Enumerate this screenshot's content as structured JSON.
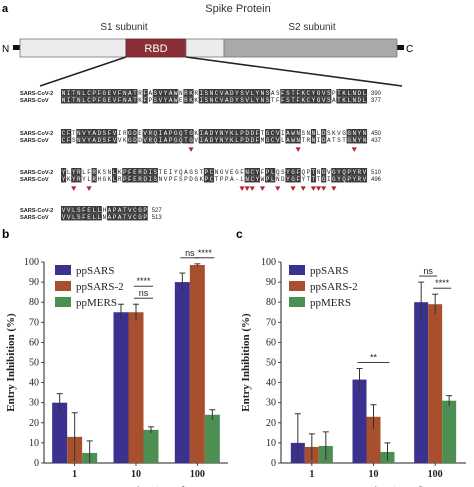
{
  "panel_a": {
    "letter": "a",
    "title": "Spike Protein",
    "s1_label": "S1 subunit",
    "s2_label": "S2 subunit",
    "n_label": "N",
    "c_label": "C",
    "rbd_label": "RBD",
    "blocks": [
      {
        "rows": [
          {
            "name": "SARS-CoV-2",
            "seq": "NITNLCPFGEVFNATRFASVYAWNRKRISNCVADYSVLYNSASFSTFKCYGVSPTKLNDL",
            "end": "390"
          },
          {
            "name": "SARS-CoV",
            "seq": "NITNLCPFGEVFNATKFPSVYAWERKKISNCVADYSVLYNSTFFSTFKCYGVSATKLNDL",
            "end": "377"
          }
        ],
        "markers": []
      },
      {
        "rows": [
          {
            "name": "SARS-CoV-2",
            "seq": "CFTNVYADSFVIRGDEVRQIAPGQTGKIADYNYKLPDDFTGCVIAWNSNNLDSKVGGNYN",
            "end": "450"
          },
          {
            "name": "SARS-CoV",
            "seq": "CFSNVYADSFVVKGDDVRQIAPGQTGVIADYNYKLPDDFMGCVLAWNTRNIDATSTGNYN",
            "end": "437"
          }
        ],
        "markers": [
          25,
          46,
          57
        ]
      },
      {
        "rows": [
          {
            "name": "SARS-CoV-2",
            "seq": "YLYRLFRKSNLKPFERDISTEIYQAGSTPCNGVEGFNCYFPLQSYGFQPTNGVGYQPYRV",
            "end": "510"
          },
          {
            "name": "SARS-CoV",
            "seq": "YKYRYLRHGKLRPFERDISNVPFSPDGKPCTPPA-LNCYWPLNDYGFYTTTGIGYQPYRV",
            "end": "496"
          }
        ],
        "markers": [
          2,
          5,
          35,
          36,
          37,
          39,
          42,
          45,
          47,
          49,
          50,
          51,
          53
        ]
      },
      {
        "rows": [
          {
            "name": "SARS-CoV-2",
            "seq": "VVLSFELLHAPATVCGP",
            "end": "527"
          },
          {
            "name": "SARS-CoV",
            "seq": "VVLSFELLNAPATVCGP",
            "end": "513"
          }
        ],
        "markers": []
      }
    ]
  },
  "chart_data": [
    {
      "type": "bar",
      "panel": "b",
      "categories": [
        "1",
        "10",
        "100"
      ],
      "xlabel": "Concentration (μg/ml)",
      "ylabel": "Entry Inhibition (%)",
      "ylim": [
        0,
        100
      ],
      "yticks": [
        0,
        10,
        20,
        30,
        40,
        50,
        60,
        70,
        80,
        90,
        100
      ],
      "series": [
        {
          "name": "ppSARS",
          "color": "#3b318f",
          "values": [
            30,
            75,
            90
          ],
          "err": [
            4.5,
            4,
            4.5
          ]
        },
        {
          "name": "ppSARS-2",
          "color": "#a8502e",
          "values": [
            13,
            75,
            98.5
          ],
          "err": [
            12,
            4,
            0.6
          ]
        },
        {
          "name": "ppMERS",
          "color": "#4d8e52",
          "values": [
            5,
            16.5,
            24
          ],
          "err": [
            6,
            1.5,
            2.5
          ]
        }
      ],
      "annotations": [
        {
          "from": [
            1,
            1
          ],
          "to": [
            1,
            2
          ],
          "label": "ns"
        },
        {
          "from": [
            1,
            1
          ],
          "to": [
            1,
            2
          ],
          "label": "****",
          "level": 2
        },
        {
          "from": [
            2,
            0
          ],
          "to": [
            2,
            1
          ],
          "label": "ns"
        },
        {
          "from": [
            2,
            1
          ],
          "to": [
            2,
            2
          ],
          "label": "****"
        }
      ],
      "legend": "top-left"
    },
    {
      "type": "bar",
      "panel": "c",
      "categories": [
        "1",
        "10",
        "100"
      ],
      "xlabel": "Concentration (μg/ml)",
      "ylabel": "Entry Inhibition (%)",
      "ylim": [
        0,
        100
      ],
      "yticks": [
        0,
        10,
        20,
        30,
        40,
        50,
        60,
        70,
        80,
        90,
        100
      ],
      "series": [
        {
          "name": "ppSARS",
          "color": "#3b318f",
          "values": [
            10,
            41.5,
            80
          ],
          "err": [
            14.5,
            5.5,
            10
          ]
        },
        {
          "name": "ppSARS-2",
          "color": "#a8502e",
          "values": [
            8,
            23,
            79
          ],
          "err": [
            6.5,
            6,
            5
          ]
        },
        {
          "name": "ppMERS",
          "color": "#4d8e52",
          "values": [
            8.5,
            5.5,
            31
          ],
          "err": [
            7,
            4.5,
            2.5
          ]
        }
      ],
      "annotations": [
        {
          "from": [
            1,
            0
          ],
          "to": [
            1,
            2
          ],
          "label": "**"
        },
        {
          "from": [
            2,
            0
          ],
          "to": [
            2,
            1
          ],
          "label": "ns"
        },
        {
          "from": [
            2,
            1
          ],
          "to": [
            2,
            2
          ],
          "label": "****"
        }
      ],
      "legend": "top-left"
    }
  ]
}
